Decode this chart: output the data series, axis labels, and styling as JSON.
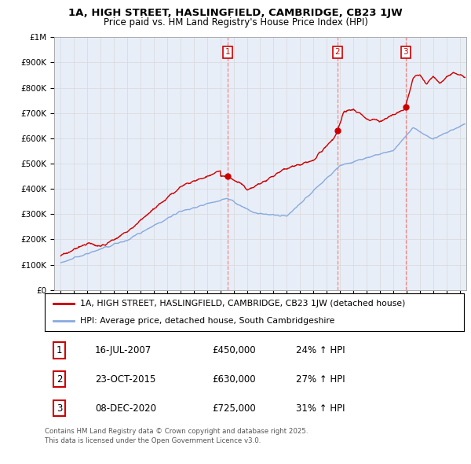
{
  "title_line1": "1A, HIGH STREET, HASLINGFIELD, CAMBRIDGE, CB23 1JW",
  "title_line2": "Price paid vs. HM Land Registry's House Price Index (HPI)",
  "legend_red": "1A, HIGH STREET, HASLINGFIELD, CAMBRIDGE, CB23 1JW (detached house)",
  "legend_blue": "HPI: Average price, detached house, South Cambridgeshire",
  "footnote_line1": "Contains HM Land Registry data © Crown copyright and database right 2025.",
  "footnote_line2": "This data is licensed under the Open Government Licence v3.0.",
  "sales": [
    {
      "num": 1,
      "date": "16-JUL-2007",
      "price": "£450,000",
      "pct": "24% ↑ HPI"
    },
    {
      "num": 2,
      "date": "23-OCT-2015",
      "price": "£630,000",
      "pct": "27% ↑ HPI"
    },
    {
      "num": 3,
      "date": "08-DEC-2020",
      "price": "£725,000",
      "pct": "31% ↑ HPI"
    }
  ],
  "sale_dates_decimal": [
    2007.54,
    2015.81,
    2020.93
  ],
  "sale_prices": [
    450000,
    630000,
    725000
  ],
  "ylim": [
    0,
    1000000
  ],
  "yticks": [
    0,
    100000,
    200000,
    300000,
    400000,
    500000,
    600000,
    700000,
    800000,
    900000,
    1000000
  ],
  "ytick_labels": [
    "£0",
    "£100K",
    "£200K",
    "£300K",
    "£400K",
    "£500K",
    "£600K",
    "£700K",
    "£800K",
    "£900K",
    "£1M"
  ],
  "xlim_start": 1994.5,
  "xlim_end": 2025.5,
  "xticks": [
    1995,
    1996,
    1997,
    1998,
    1999,
    2000,
    2001,
    2002,
    2003,
    2004,
    2005,
    2006,
    2007,
    2008,
    2009,
    2010,
    2011,
    2012,
    2013,
    2014,
    2015,
    2016,
    2017,
    2018,
    2019,
    2020,
    2021,
    2022,
    2023,
    2024,
    2025
  ],
  "line_red_color": "#cc0000",
  "line_blue_color": "#88aadd",
  "grid_color": "#d8d8d8",
  "vline_color": "#ee8888",
  "sale_box_color": "#cc0000",
  "chart_bg": "#e8eef8"
}
